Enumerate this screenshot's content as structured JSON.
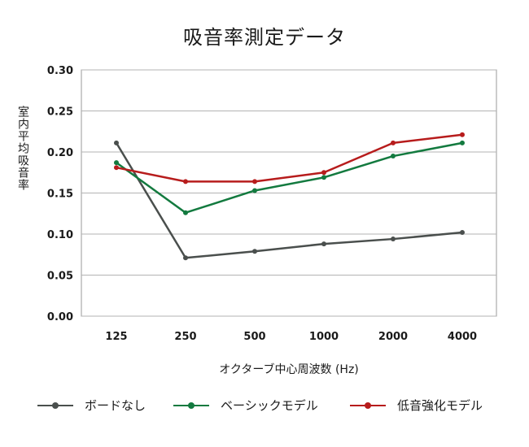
{
  "chart_data": {
    "type": "line",
    "title": "吸音率測定データ",
    "xlabel": "オクターブ中心周波数 (Hz)",
    "ylabel": "室内平均吸音率",
    "categories": [
      "125",
      "250",
      "500",
      "1000",
      "2000",
      "4000"
    ],
    "ylim": [
      0,
      0.3
    ],
    "yticks": [
      "0.00",
      "0.05",
      "0.10",
      "0.15",
      "0.20",
      "0.25",
      "0.30"
    ],
    "grid": true,
    "legend_position": "bottom",
    "series": [
      {
        "name": "ボードなし",
        "color": "#4a4f4d",
        "values": [
          0.211,
          0.071,
          0.079,
          0.088,
          0.094,
          0.102
        ]
      },
      {
        "name": "ベーシックモデル",
        "color": "#137a3f",
        "values": [
          0.187,
          0.126,
          0.153,
          0.169,
          0.195,
          0.211
        ]
      },
      {
        "name": "低音強化モデル",
        "color": "#b71c1c",
        "values": [
          0.181,
          0.164,
          0.164,
          0.175,
          0.211,
          0.221
        ]
      }
    ]
  }
}
